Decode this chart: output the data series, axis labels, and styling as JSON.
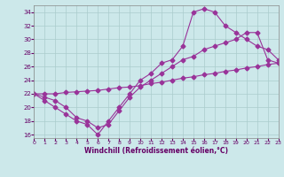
{
  "xlabel": "Windchill (Refroidissement éolien,°C)",
  "background_color": "#cce8ea",
  "grid_color": "#aacccc",
  "line_color": "#993399",
  "xlim": [
    0,
    23
  ],
  "ylim": [
    15.5,
    35
  ],
  "yticks": [
    16,
    18,
    20,
    22,
    24,
    26,
    28,
    30,
    32,
    34
  ],
  "xticks": [
    0,
    1,
    2,
    3,
    4,
    5,
    6,
    7,
    8,
    9,
    10,
    11,
    12,
    13,
    14,
    15,
    16,
    17,
    18,
    19,
    20,
    21,
    22,
    23
  ],
  "curve1_x": [
    0,
    1,
    2,
    3,
    4,
    5,
    6,
    7,
    8,
    9,
    10,
    11,
    12,
    13,
    14,
    15,
    16,
    17,
    18,
    19,
    20,
    21,
    22,
    23
  ],
  "curve1_y": [
    22,
    21,
    20,
    19,
    18,
    17.5,
    16,
    18,
    20,
    22,
    24,
    25,
    26.5,
    27,
    29,
    34,
    34.5,
    34,
    32,
    31,
    30,
    29,
    28.5,
    27
  ],
  "curve2_x": [
    0,
    1,
    2,
    3,
    4,
    5,
    6,
    7,
    8,
    9,
    10,
    11,
    12,
    13,
    14,
    15,
    16,
    17,
    18,
    19,
    20,
    21,
    22,
    23
  ],
  "curve2_y": [
    22,
    21.5,
    21,
    20,
    18.5,
    18,
    17,
    17.5,
    19.5,
    21.5,
    23,
    24,
    25,
    26,
    27,
    27.5,
    28.5,
    29,
    29.5,
    30,
    31,
    31,
    27,
    26.5
  ],
  "curve3_x": [
    0,
    1,
    2,
    3,
    4,
    5,
    6,
    7,
    8,
    9,
    10,
    11,
    12,
    13,
    14,
    15,
    16,
    17,
    18,
    19,
    20,
    21,
    22,
    23
  ],
  "curve3_y": [
    22,
    22.0,
    22.0,
    22.2,
    22.3,
    22.4,
    22.5,
    22.7,
    22.9,
    23.0,
    23.2,
    23.5,
    23.7,
    24.0,
    24.3,
    24.5,
    24.8,
    25.0,
    25.3,
    25.5,
    25.8,
    26.0,
    26.3,
    26.5
  ]
}
